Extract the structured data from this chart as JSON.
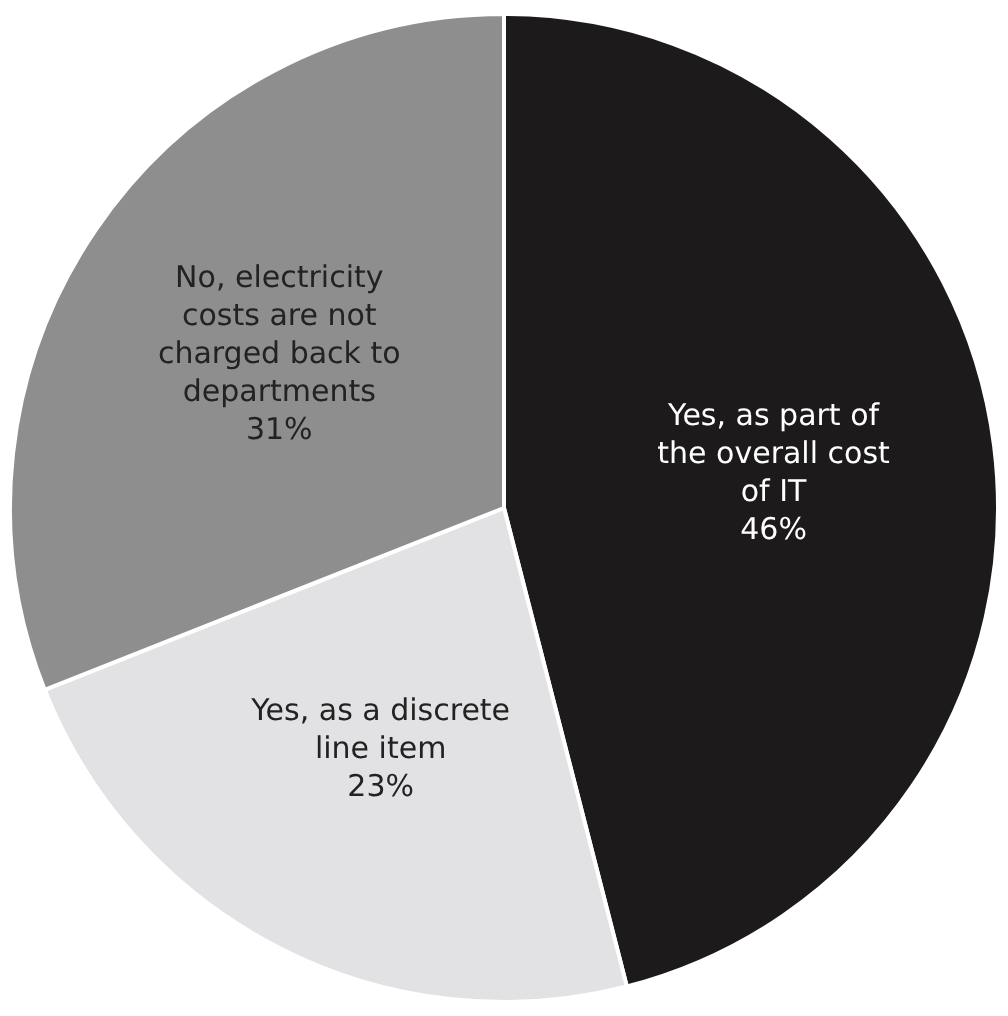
{
  "chart_data": {
    "type": "pie",
    "categories": [
      "Yes, as part of the overall cost of IT",
      "Yes, as a discrete line item",
      "No, electricity costs are not charged back to departments"
    ],
    "values": [
      46,
      23,
      31
    ],
    "colors": [
      "#1c1a1b",
      "#e2e2e4",
      "#8e8e8e"
    ],
    "value_labels": [
      "46%",
      "23%",
      "31%"
    ]
  }
}
